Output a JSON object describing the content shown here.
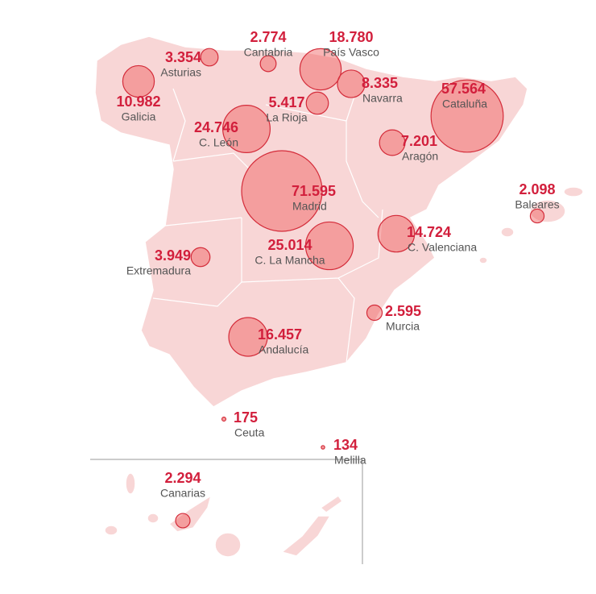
{
  "regions": [
    {
      "name": "Galicia",
      "value": 10982,
      "label": "10.982"
    },
    {
      "name": "Asturias",
      "value": 3354,
      "label": "3.354"
    },
    {
      "name": "Cantabria",
      "value": 2774,
      "label": "2.774"
    },
    {
      "name": "País Vasco",
      "value": 18780,
      "label": "18.780"
    },
    {
      "name": "Navarra",
      "value": 8335,
      "label": "8.335"
    },
    {
      "name": "La Rioja",
      "value": 5417,
      "label": "5.417"
    },
    {
      "name": "Cataluña",
      "value": 57564,
      "label": "57.564"
    },
    {
      "name": "C. León",
      "value": 24746,
      "label": "24.746"
    },
    {
      "name": "Aragón",
      "value": 7201,
      "label": "7.201"
    },
    {
      "name": "Madrid",
      "value": 71595,
      "label": "71.595"
    },
    {
      "name": "Baleares",
      "value": 2098,
      "label": "2.098"
    },
    {
      "name": "C. Valenciana",
      "value": 14724,
      "label": "14.724"
    },
    {
      "name": "C. La Mancha",
      "value": 25014,
      "label": "25.014"
    },
    {
      "name": "Extremadura",
      "value": 3949,
      "label": "3.949"
    },
    {
      "name": "Murcia",
      "value": 2595,
      "label": "2.595"
    },
    {
      "name": "Andalucía",
      "value": 16457,
      "label": "16.457"
    },
    {
      "name": "Ceuta",
      "value": 175,
      "label": "175"
    },
    {
      "name": "Melilla",
      "value": 134,
      "label": "134"
    },
    {
      "name": "Canarias",
      "value": 2294,
      "label": "2.294"
    }
  ]
}
